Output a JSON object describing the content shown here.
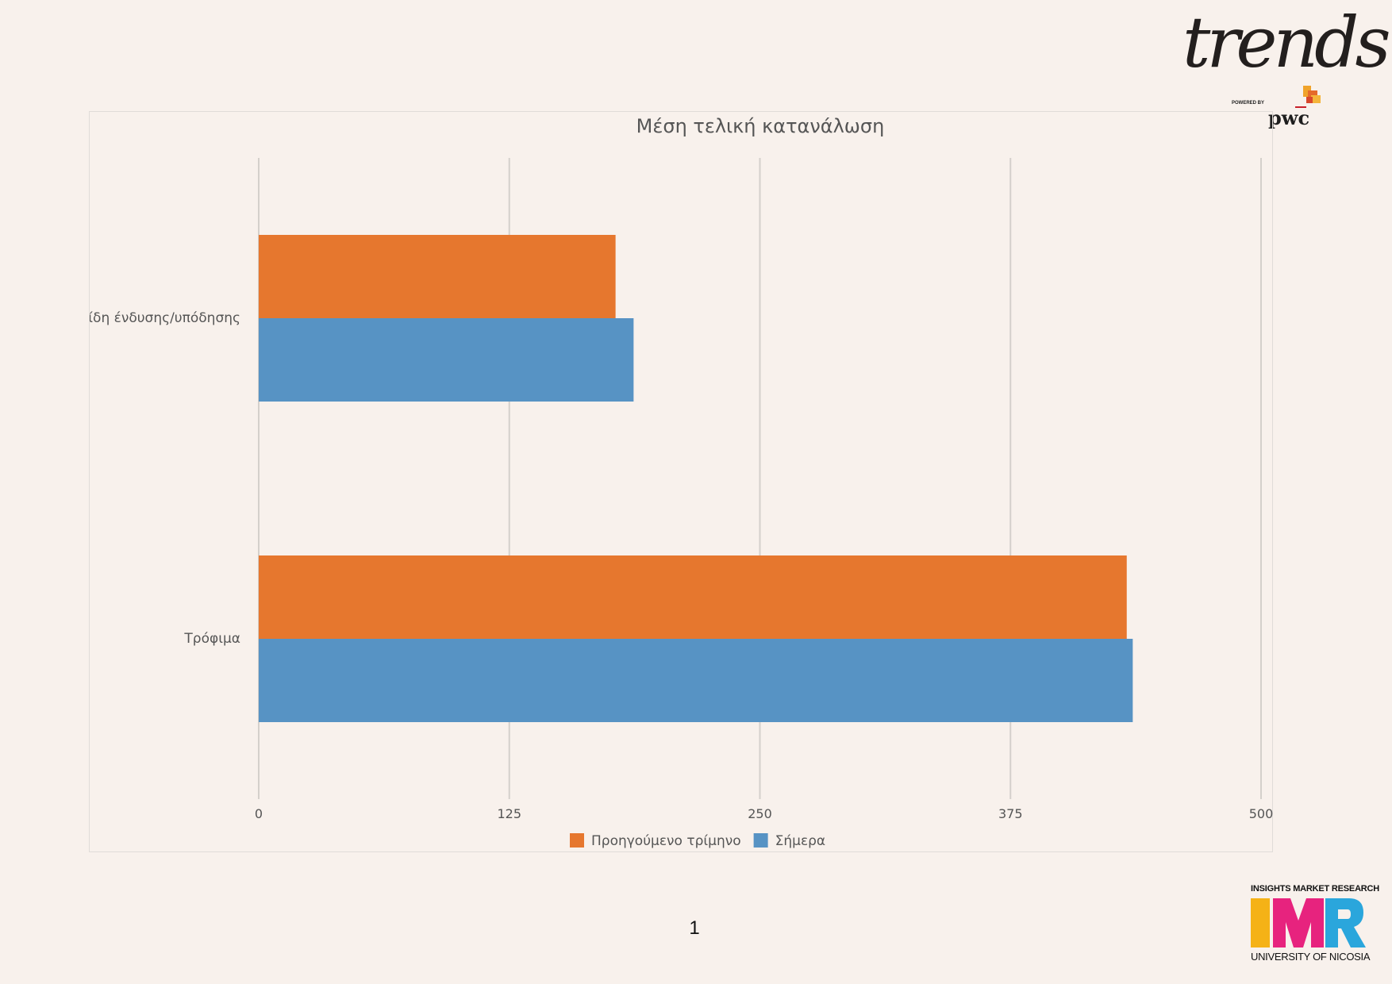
{
  "branding": {
    "trends_logo": "trends",
    "powered_by": "POWERED BY",
    "pwc": "pwc",
    "imr_top": "INSIGHTS MARKET RESEARCH",
    "imr_letters": "IMR",
    "imr_bottom": "UNIVERSITY OF NICOSIA",
    "colors": {
      "i": "#f5b216",
      "m": "#e7237e",
      "r": "#2aa6dc"
    }
  },
  "page_number": "1",
  "chart_data": {
    "type": "bar",
    "orientation": "horizontal",
    "title": "Μέση τελική κατανάλωση",
    "categories": [
      "Είδη ένδυσης/υπόδησης",
      "Τρόφιμα"
    ],
    "series": [
      {
        "name": "Προηγούμενο τρίμηνο",
        "color": "#e6772e",
        "values": [
          178,
          433
        ]
      },
      {
        "name": "Σήμερα",
        "color": "#5793c4",
        "values": [
          187,
          436
        ]
      }
    ],
    "xlim": [
      0,
      500
    ],
    "xticks": [
      0,
      125,
      250,
      375,
      500
    ],
    "xlabel": "",
    "ylabel": "",
    "grid": "vertical",
    "legend": "bottom"
  }
}
